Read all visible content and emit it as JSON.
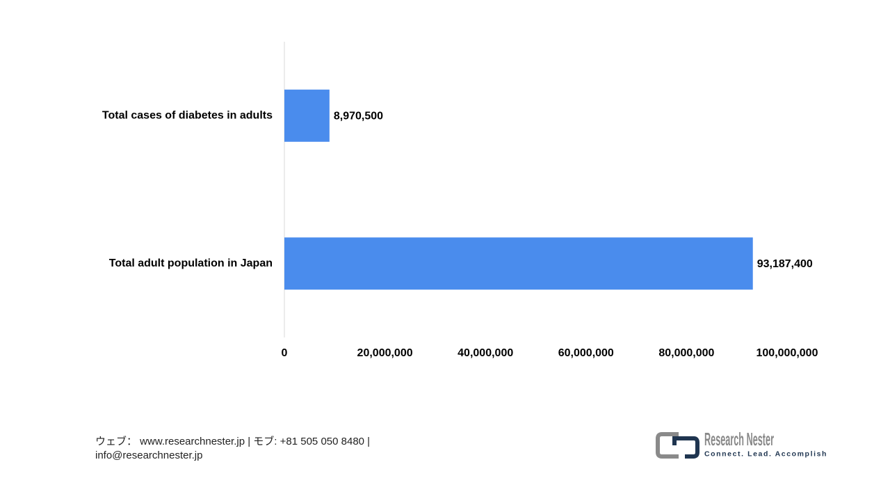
{
  "chart_data": {
    "type": "bar",
    "orientation": "horizontal",
    "categories": [
      "Total cases of diabetes in adults",
      "Total adult population in Japan"
    ],
    "values": [
      8970500,
      93187400
    ],
    "value_labels": [
      "8,970,500",
      "93,187,400"
    ],
    "color": "#4a8ced",
    "xlim": [
      0,
      100000000
    ],
    "xticks": [
      0,
      {
        "value": 20000000,
        "label": "20,000,000"
      },
      {
        "value": 40000000,
        "label": "40,000,000"
      },
      {
        "value": 60000000,
        "label": "60,000,000"
      },
      {
        "value": 80000000,
        "label": "80,000,000"
      },
      {
        "value": 100000000,
        "label": "100,000,000"
      }
    ],
    "grid": false
  },
  "footer": {
    "line1": "ウェブ： www.researchnester.jp  | モブ: +81 505 050 8480 |",
    "line2": "info@researchnester.jp"
  },
  "logo": {
    "name": "Research Nester",
    "tagline": "Connect. Lead. Accomplish"
  }
}
